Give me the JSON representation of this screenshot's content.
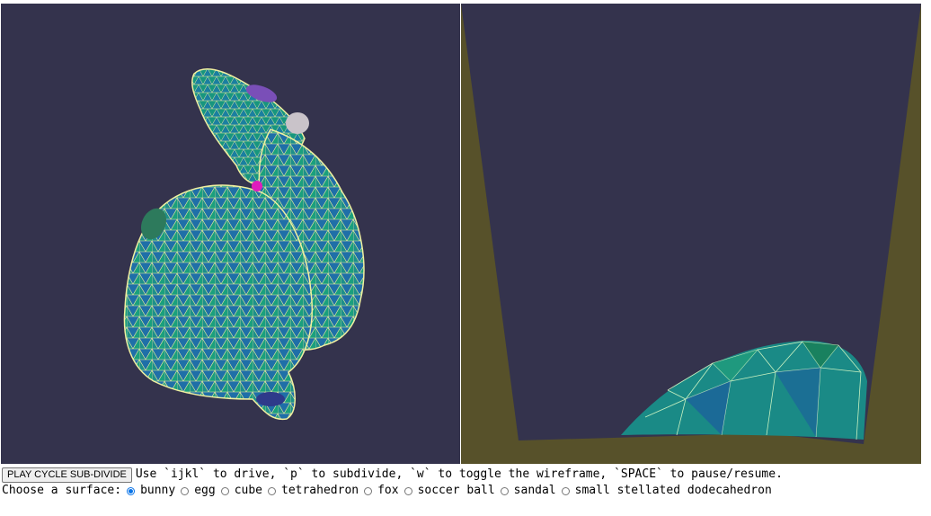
{
  "viewports": {
    "background_color": "#34334d",
    "mesh_color_a": "#1e9a8c",
    "mesh_color_b": "#1f5ea6",
    "wireframe_color": "#f1f0a0",
    "ground_color": "#57512a",
    "marker_colors": [
      "#7a4fb8",
      "#c9c3c9",
      "#e01cbd",
      "#2d7a5c",
      "#2e3a8a"
    ]
  },
  "controls": {
    "play_button_label": "PLAY CYCLE SUB-DIVIDE",
    "instructions": "Use `ijkl` to drive, `p` to subdivide, `w` to toggle the wireframe, `SPACE` to pause/resume.",
    "surface_label": "Choose a surface:",
    "surfaces": [
      {
        "label": "bunny",
        "checked": true
      },
      {
        "label": "egg",
        "checked": false
      },
      {
        "label": "cube",
        "checked": false
      },
      {
        "label": "tetrahedron",
        "checked": false
      },
      {
        "label": "fox",
        "checked": false
      },
      {
        "label": "soccer ball",
        "checked": false
      },
      {
        "label": "sandal",
        "checked": false
      },
      {
        "label": "small stellated dodecahedron",
        "checked": false
      }
    ]
  }
}
